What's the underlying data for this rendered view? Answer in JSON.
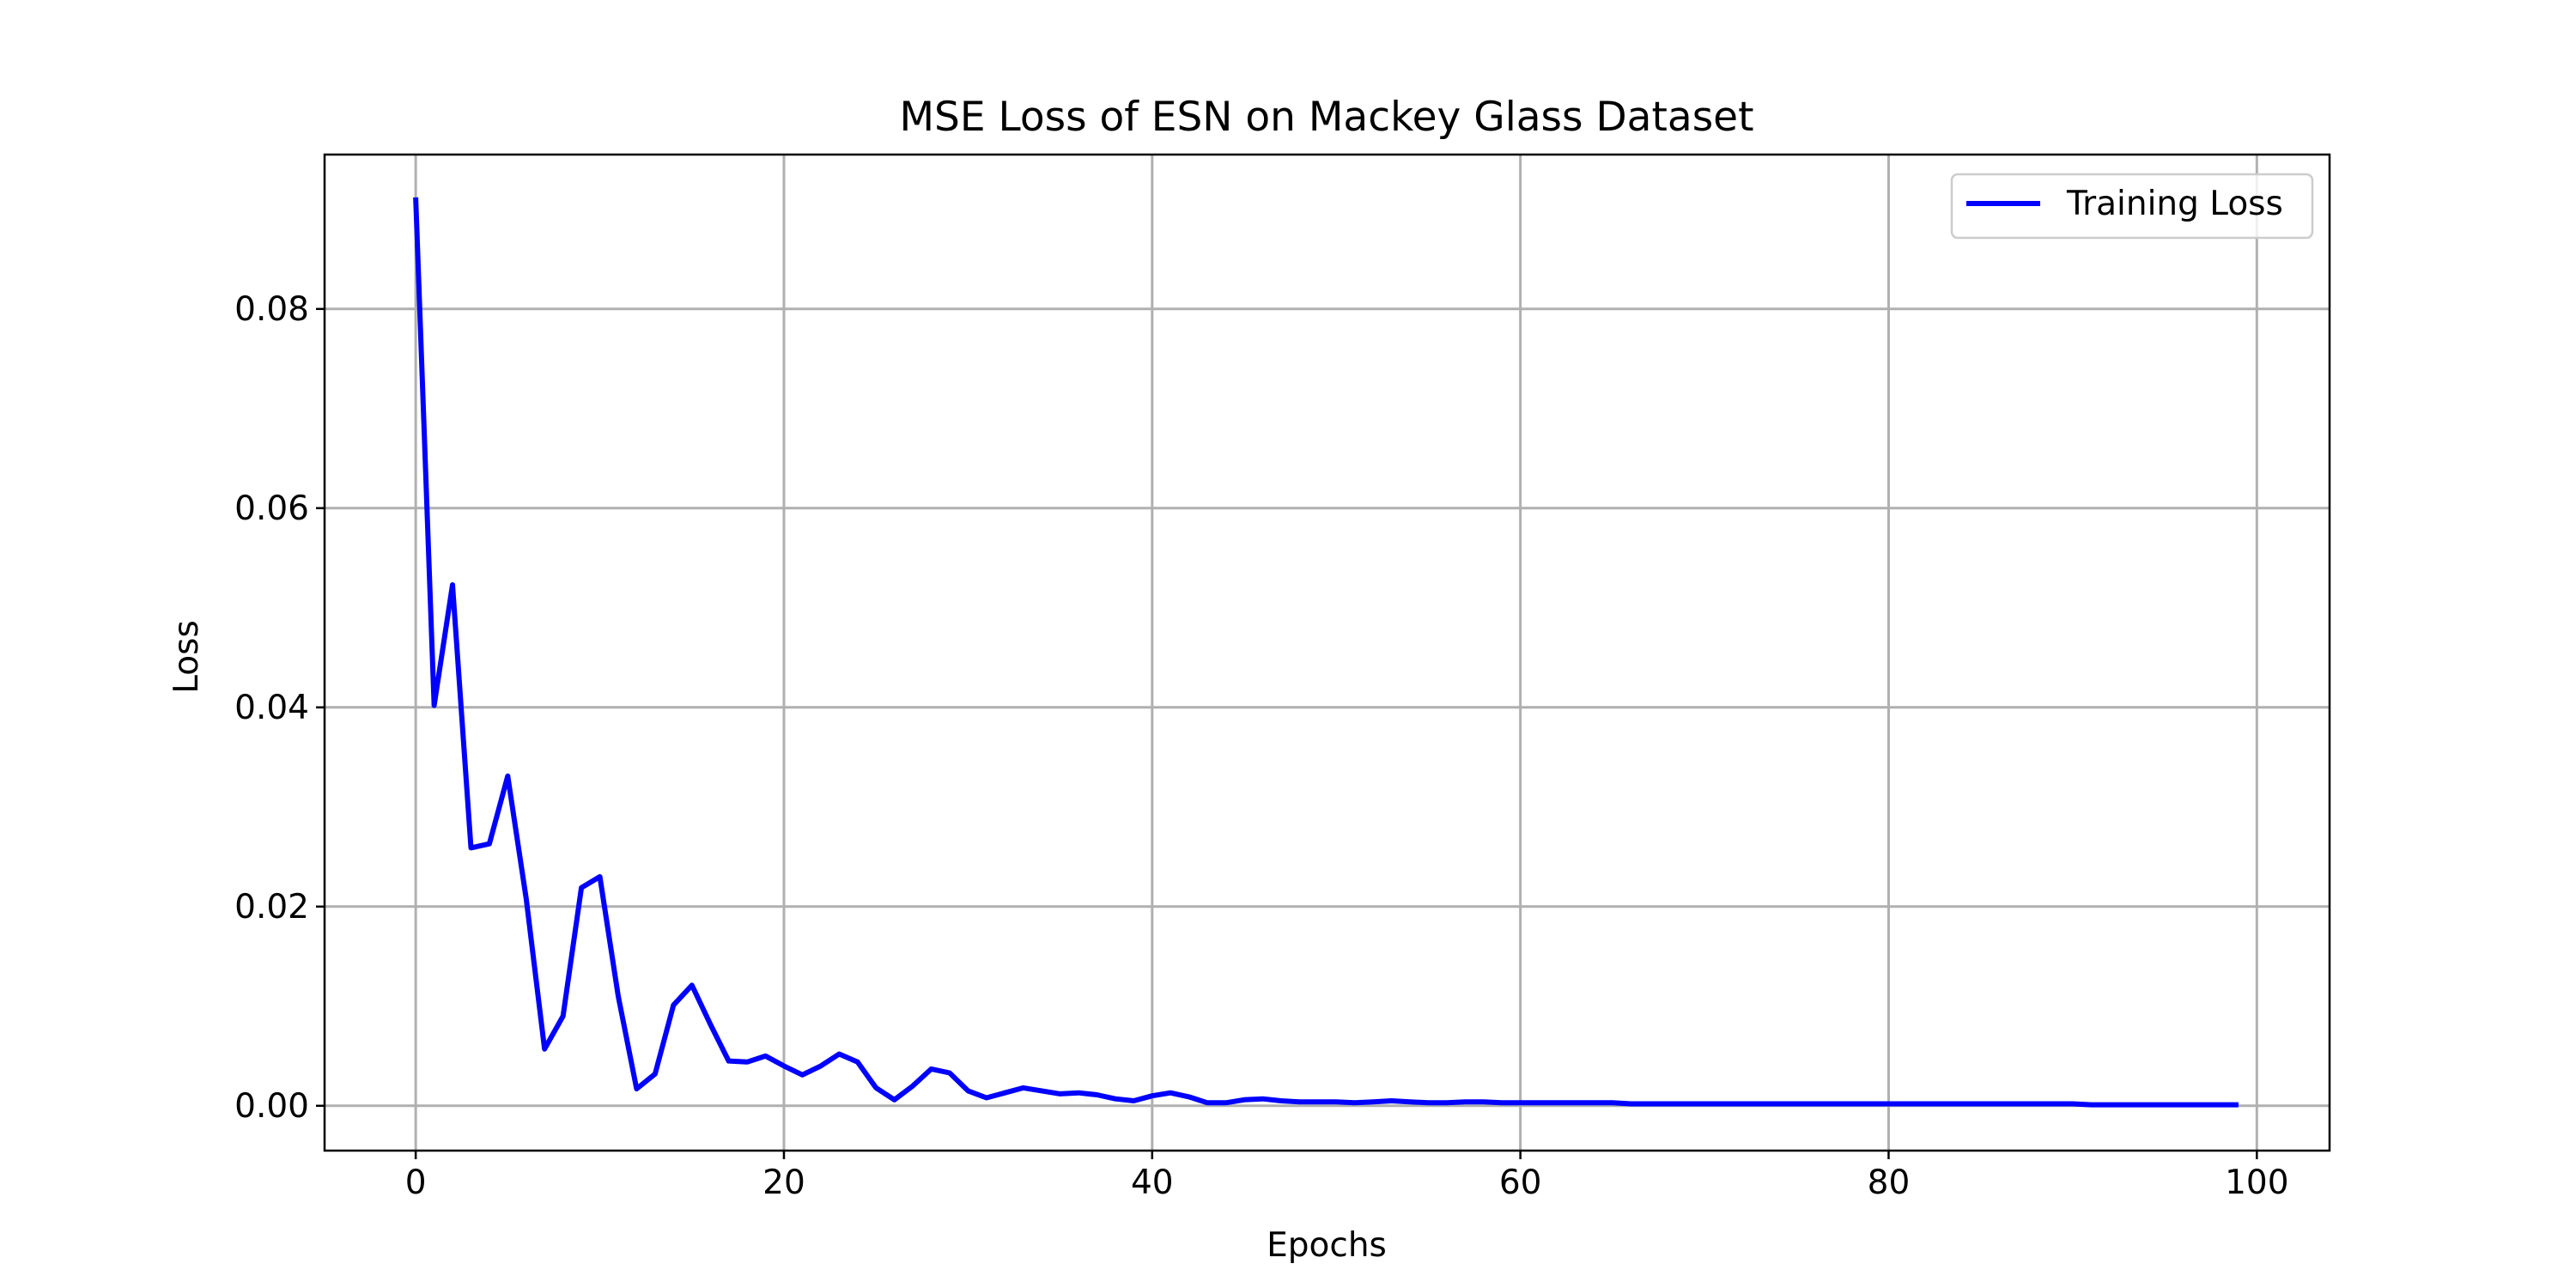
{
  "chart_data": {
    "type": "line",
    "title": "MSE Loss of ESN on Mackey Glass Dataset",
    "xlabel": "Epochs",
    "ylabel": "Loss",
    "xlim": [
      -4.95,
      103.95
    ],
    "ylim": [
      -0.0045,
      0.0955
    ],
    "xticks": [
      0,
      20,
      40,
      60,
      80,
      100
    ],
    "xtick_labels": [
      "0",
      "20",
      "40",
      "60",
      "80",
      "100"
    ],
    "yticks": [
      0.0,
      0.02,
      0.04,
      0.06,
      0.08
    ],
    "ytick_labels": [
      "0.00",
      "0.02",
      "0.04",
      "0.06",
      "0.08"
    ],
    "grid": true,
    "legend_position": "top-right",
    "series": [
      {
        "name": "Training Loss",
        "color": "#0000ff",
        "x": [
          0,
          1,
          2,
          3,
          4,
          5,
          6,
          7,
          8,
          9,
          10,
          11,
          12,
          13,
          14,
          15,
          16,
          17,
          18,
          19,
          20,
          21,
          22,
          23,
          24,
          25,
          26,
          27,
          28,
          29,
          30,
          31,
          32,
          33,
          34,
          35,
          36,
          37,
          38,
          39,
          40,
          41,
          42,
          43,
          44,
          45,
          46,
          47,
          48,
          49,
          50,
          51,
          52,
          53,
          54,
          55,
          56,
          57,
          58,
          59,
          60,
          61,
          62,
          63,
          64,
          65,
          66,
          67,
          68,
          69,
          70,
          71,
          72,
          73,
          74,
          75,
          76,
          77,
          78,
          79,
          80,
          81,
          82,
          83,
          84,
          85,
          86,
          87,
          88,
          89,
          90,
          91,
          92,
          93,
          94,
          95,
          96,
          97,
          98,
          99
        ],
        "y": [
          0.0912,
          0.0402,
          0.0523,
          0.0259,
          0.0263,
          0.0331,
          0.0208,
          0.0057,
          0.009,
          0.0219,
          0.023,
          0.011,
          0.0017,
          0.0032,
          0.0101,
          0.0121,
          0.0082,
          0.0045,
          0.0044,
          0.005,
          0.004,
          0.0031,
          0.004,
          0.0052,
          0.0044,
          0.0018,
          0.0006,
          0.002,
          0.0037,
          0.0033,
          0.0015,
          0.0008,
          0.0013,
          0.0018,
          0.0015,
          0.0012,
          0.0013,
          0.0011,
          0.0007,
          0.0005,
          0.001,
          0.0013,
          0.0009,
          0.0003,
          0.0003,
          0.0006,
          0.0007,
          0.0005,
          0.0004,
          0.0004,
          0.0004,
          0.0003,
          0.0004,
          0.0005,
          0.0004,
          0.0003,
          0.0003,
          0.0004,
          0.0004,
          0.0003,
          0.0003,
          0.0003,
          0.0003,
          0.0003,
          0.0003,
          0.0003,
          0.0002,
          0.0002,
          0.0002,
          0.0002,
          0.0002,
          0.0002,
          0.0002,
          0.0002,
          0.0002,
          0.0002,
          0.0002,
          0.0002,
          0.0002,
          0.0002,
          0.0002,
          0.0002,
          0.0002,
          0.0002,
          0.0002,
          0.0002,
          0.0002,
          0.0002,
          0.0002,
          0.0002,
          0.0002,
          0.0001,
          0.0001,
          0.0001,
          0.0001,
          0.0001,
          0.0001,
          0.0001,
          0.0001,
          0.0001
        ]
      }
    ]
  }
}
